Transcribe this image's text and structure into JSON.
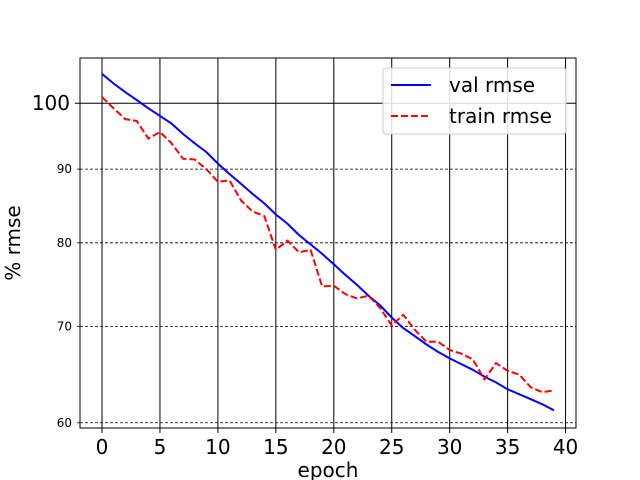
{
  "chart_data": {
    "type": "line",
    "title": "",
    "xlabel": "epoch",
    "ylabel": "% rmse",
    "yscale": "log",
    "xlim": [
      -1.9,
      40.9
    ],
    "ylim": [
      59.5,
      107.5
    ],
    "x_ticks": [
      0,
      5,
      10,
      15,
      20,
      25,
      30,
      35,
      40
    ],
    "x_tick_labels": [
      "0",
      "5",
      "10",
      "15",
      "20",
      "25",
      "30",
      "35",
      "40"
    ],
    "y_major_ticks": [
      100
    ],
    "y_major_tick_labels": [
      "100"
    ],
    "y_minor_ticks": [
      60,
      70,
      80,
      90
    ],
    "y_minor_tick_labels": [
      "60",
      "70",
      "80",
      "90"
    ],
    "grid": {
      "x_major": "solid",
      "y_major": "solid",
      "y_minor": "dashed"
    },
    "legend_position": "top-right",
    "x": [
      0,
      1,
      2,
      3,
      4,
      5,
      6,
      7,
      8,
      9,
      10,
      11,
      12,
      13,
      14,
      15,
      16,
      17,
      18,
      19,
      20,
      21,
      22,
      23,
      24,
      25,
      26,
      27,
      28,
      29,
      30,
      31,
      32,
      33,
      34,
      35,
      36,
      37,
      38,
      39
    ],
    "series": [
      {
        "name": "val rmse",
        "color": "#0000ff",
        "dash": "solid",
        "values": [
          104.8,
          103.2,
          101.8,
          100.5,
          99.2,
          98.0,
          96.8,
          95.2,
          93.8,
          92.5,
          90.8,
          89.3,
          87.9,
          86.5,
          85.2,
          83.7,
          82.5,
          81.0,
          79.8,
          78.6,
          77.3,
          76.0,
          74.8,
          73.5,
          72.4,
          71.0,
          69.8,
          68.9,
          68.0,
          67.2,
          66.5,
          65.9,
          65.3,
          64.6,
          64.0,
          63.3,
          62.8,
          62.3,
          61.8,
          61.2
        ]
      },
      {
        "name": "train rmse",
        "color": "#ff0000",
        "dash": "dashed",
        "values": [
          101.0,
          99.2,
          97.5,
          97.2,
          94.5,
          95.5,
          93.8,
          91.5,
          91.4,
          90.0,
          88.2,
          88.4,
          85.6,
          84.1,
          83.5,
          79.1,
          80.3,
          78.8,
          79.1,
          74.6,
          74.7,
          73.7,
          73.2,
          73.5,
          72.1,
          70.1,
          71.3,
          69.6,
          68.3,
          68.3,
          67.4,
          67.0,
          66.4,
          64.3,
          66.0,
          65.2,
          64.8,
          63.5,
          63.0,
          63.2
        ]
      }
    ]
  }
}
